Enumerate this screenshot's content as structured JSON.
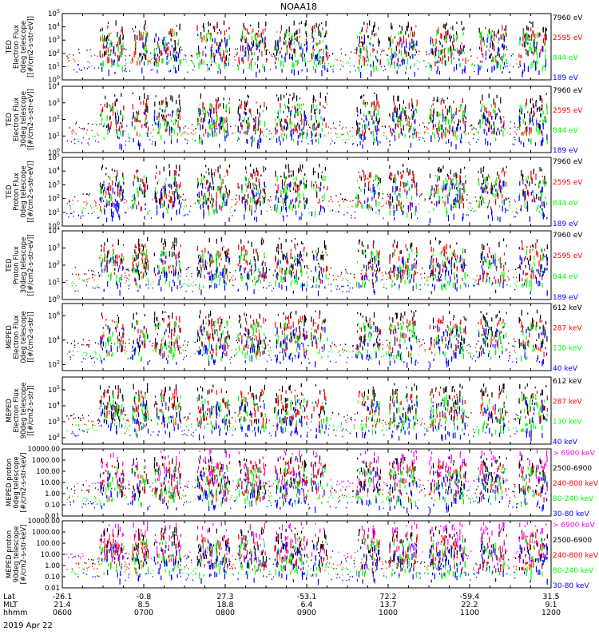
{
  "title": "NOAA18",
  "date_label": "2019 Apr 22",
  "colors": {
    "black": "#000000",
    "red": "#ff0000",
    "green": "#00ff00",
    "blue": "#0000ff",
    "magenta": "#ff00ff",
    "frame": "#000000"
  },
  "chart_data": [
    {
      "type": "scatter",
      "panel": "TED electron 0deg",
      "ylabel": [
        "TED",
        "Electron Flux",
        "0deg telescope",
        "[[#/cm2-s-str-eV]]"
      ],
      "yticks": [
        "10^0",
        "10^1",
        "10^2",
        "10^3",
        "10^4",
        "10^5"
      ],
      "log_range": [
        0,
        5
      ],
      "series": [
        {
          "name": "7960 eV",
          "color": "black"
        },
        {
          "name": "2595 eV",
          "color": "red"
        },
        {
          "name": "844 eV",
          "color": "green"
        },
        {
          "name": "189 eV",
          "color": "blue"
        }
      ]
    },
    {
      "type": "scatter",
      "panel": "TED electron 30deg",
      "ylabel": [
        "TED",
        "Electron Flux",
        "30deg telescope",
        "[[#/cm2-s-str-eV]]"
      ],
      "yticks": [
        "10^0",
        "10^1",
        "10^2",
        "10^3",
        "10^4"
      ],
      "log_range": [
        0,
        4
      ],
      "series": [
        {
          "name": "7960 eV",
          "color": "black"
        },
        {
          "name": "2595 eV",
          "color": "red"
        },
        {
          "name": "844 eV",
          "color": "green"
        },
        {
          "name": "189 eV",
          "color": "blue"
        }
      ]
    },
    {
      "type": "scatter",
      "panel": "TED proton 0deg",
      "ylabel": [
        "TED",
        "Proton Flux",
        "0deg telescope",
        "[[#/cm2-s-str-eV]]"
      ],
      "yticks": [
        "10^0",
        "10^1",
        "10^2",
        "10^3",
        "10^4",
        "10^5"
      ],
      "log_range": [
        0,
        5
      ],
      "series": [
        {
          "name": "7960 eV",
          "color": "black"
        },
        {
          "name": "2595 eV",
          "color": "red"
        },
        {
          "name": "844 eV",
          "color": "green"
        },
        {
          "name": "189 eV",
          "color": "blue"
        }
      ]
    },
    {
      "type": "scatter",
      "panel": "TED proton 30deg",
      "ylabel": [
        "TED",
        "Proton Flux",
        "30deg telescope",
        "[[#/cm2-s-str-eV]]"
      ],
      "yticks": [
        "10^0",
        "10^1",
        "10^2",
        "10^3",
        "10^4"
      ],
      "log_range": [
        0,
        4
      ],
      "series": [
        {
          "name": "7960 eV",
          "color": "black"
        },
        {
          "name": "2595 eV",
          "color": "red"
        },
        {
          "name": "844 eV",
          "color": "green"
        },
        {
          "name": "189 eV",
          "color": "blue"
        }
      ]
    },
    {
      "type": "scatter",
      "panel": "MEPED electron 0deg",
      "ylabel": [
        "MEPED",
        "Electron Flux",
        "0deg telescope",
        "[[#/cm2-s-str]]"
      ],
      "yticks": [
        "10^2",
        "10^4",
        "10^6"
      ],
      "log_range": [
        1.5,
        7
      ],
      "series": [
        {
          "name": "612 keV",
          "color": "black"
        },
        {
          "name": "287 keV",
          "color": "red"
        },
        {
          "name": "130 keV",
          "color": "green"
        },
        {
          "name": "40 keV",
          "color": "blue"
        }
      ]
    },
    {
      "type": "scatter",
      "panel": "MEPED electron 90deg",
      "ylabel": [
        "MEPED",
        "Electron Flux",
        "90deg telescope",
        "[[#/cm2-s-str]]"
      ],
      "yticks": [
        "10^2",
        "10^3",
        "10^4",
        "10^5"
      ],
      "log_range": [
        1.6,
        5.8
      ],
      "series": [
        {
          "name": "612 keV",
          "color": "black"
        },
        {
          "name": "287 keV",
          "color": "red"
        },
        {
          "name": "130 keV",
          "color": "green"
        },
        {
          "name": "40 keV",
          "color": "blue"
        }
      ]
    },
    {
      "type": "scatter",
      "panel": "MEPED proton 0deg",
      "ylabel": [
        "MEPED proton",
        "0deg telescope",
        "[#/cm2-s-str-keV]"
      ],
      "yticks": [
        "0.01",
        "0.10",
        "1.00",
        "10.00",
        "100.00",
        "1000.00",
        "10000.00"
      ],
      "log_range": [
        -2,
        4
      ],
      "series": [
        {
          "name": "> 6900 keV",
          "color": "magenta"
        },
        {
          "name": "2500-6900",
          "color": "black"
        },
        {
          "name": "240-800 keV",
          "color": "red"
        },
        {
          "name": "80-240 keV",
          "color": "green"
        },
        {
          "name": "30-80 keV",
          "color": "blue"
        }
      ]
    },
    {
      "type": "scatter",
      "panel": "MEPED proton 90deg",
      "ylabel": [
        "MEPED proton",
        "90deg telescope",
        "[#/cm2-s-str-keV]"
      ],
      "yticks": [
        "0.01",
        "0.10",
        "1.00",
        "10.00",
        "100.00",
        "1000.00",
        "10000.00"
      ],
      "log_range": [
        -2,
        4
      ],
      "series": [
        {
          "name": "> 6900 keV",
          "color": "magenta"
        },
        {
          "name": "2500-6900",
          "color": "black"
        },
        {
          "name": "240-800 keV",
          "color": "red"
        },
        {
          "name": "80-240 keV",
          "color": "green"
        },
        {
          "name": "30-80 keV",
          "color": "blue"
        }
      ]
    }
  ],
  "x_axis": {
    "row_labels": [
      "Lat",
      "MLT",
      "hhmm"
    ],
    "ticks": [
      {
        "lat": "-26.1",
        "mlt": "21.4",
        "time": "0600"
      },
      {
        "lat": "-0.8",
        "mlt": "8.5",
        "time": "0700"
      },
      {
        "lat": "27.3",
        "mlt": "18.8",
        "time": "0800"
      },
      {
        "lat": "-53.1",
        "mlt": "6.4",
        "time": "0900"
      },
      {
        "lat": "72.2",
        "mlt": "13.7",
        "time": "1000"
      },
      {
        "lat": "-59.4",
        "mlt": "22.2",
        "time": "1100"
      },
      {
        "lat": "31.5",
        "mlt": "9.1",
        "time": "1200"
      }
    ]
  }
}
